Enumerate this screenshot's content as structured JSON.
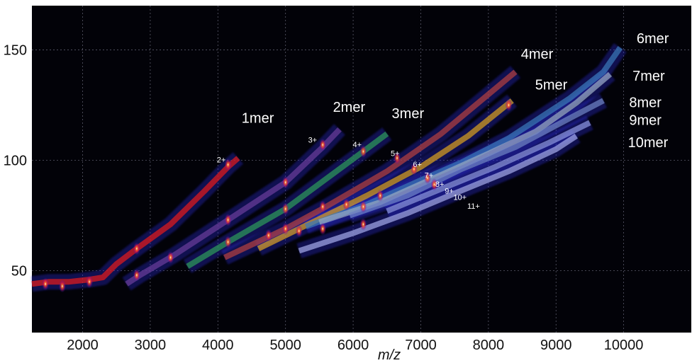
{
  "chart_data": {
    "type": "line",
    "title": "",
    "xlabel": "m/z",
    "ylabel": "",
    "xlim": [
      1250,
      11000
    ],
    "ylim": [
      22,
      170
    ],
    "x_ticks": [
      2000,
      3000,
      4000,
      5000,
      6000,
      7000,
      8000,
      9000,
      10000
    ],
    "y_ticks": [
      50,
      100,
      150
    ],
    "grid": true,
    "background": "#000000",
    "series": [
      {
        "name": "1mer",
        "color": "#e31a1c",
        "x": [
          1250,
          1500,
          1800,
          2100,
          2300,
          2500,
          2800,
          3300,
          3800,
          4150,
          4300
        ],
        "y": [
          44,
          45,
          45,
          46,
          47,
          53,
          60,
          71,
          86,
          97,
          101
        ]
      },
      {
        "name": "2mer",
        "color": "#6a3d9a",
        "x": [
          2650,
          2850,
          3350,
          4150,
          5000,
          5550,
          5800
        ],
        "y": [
          44,
          48,
          57,
          73,
          90,
          106,
          114
        ]
      },
      {
        "name": "3mer",
        "color": "#2e9a5a",
        "x": [
          3550,
          4150,
          5000,
          6150,
          6500
        ],
        "y": [
          52,
          63,
          78,
          104,
          112
        ]
      },
      {
        "name": "4mer",
        "color": "#b34040",
        "x": [
          4100,
          5000,
          5600,
          6500,
          7300,
          8400
        ],
        "y": [
          56,
          69,
          79,
          95,
          112,
          140
        ]
      },
      {
        "name": "5mer",
        "color": "#d8a020",
        "x": [
          4600,
          5200,
          6200,
          7000,
          7700,
          8350
        ],
        "y": [
          60,
          69,
          84,
          97,
          111,
          127
        ]
      },
      {
        "name": "6mer",
        "color": "#3a78b8",
        "x": [
          5300,
          6200,
          7000,
          7600,
          8300,
          9200,
          9700,
          9950
        ],
        "y": [
          70,
          80,
          91,
          99,
          110,
          128,
          140,
          151
        ]
      },
      {
        "name": "7mer",
        "color": "#9aabc0",
        "x": [
          5500,
          6400,
          7200,
          8000,
          8700,
          9300,
          9800
        ],
        "y": [
          72,
          81,
          92,
          103,
          113,
          126,
          139
        ]
      },
      {
        "name": "8mer",
        "color": "#6f84c4",
        "x": [
          5950,
          6800,
          7600,
          8400,
          9200,
          9700
        ],
        "y": [
          75,
          84,
          96,
          106,
          119,
          127
        ]
      },
      {
        "name": "9mer",
        "color": "#8c96e0",
        "x": [
          6500,
          7300,
          8100,
          8900,
          9500
        ],
        "y": [
          77,
          87,
          97,
          108,
          117
        ]
      },
      {
        "name": "10mer",
        "color": "#a2a8e8",
        "x": [
          5200,
          6000,
          6800,
          7500,
          8300,
          9000,
          9300
        ],
        "y": [
          59,
          67,
          76,
          85,
          95,
          105,
          111
        ]
      }
    ],
    "charge_labels": [
      {
        "text": "2+",
        "x": 4050,
        "y": 99
      },
      {
        "text": "3+",
        "x": 5400,
        "y": 108
      },
      {
        "text": "4+",
        "x": 6060,
        "y": 106
      },
      {
        "text": "5+",
        "x": 6620,
        "y": 102
      },
      {
        "text": "6+",
        "x": 6950,
        "y": 97
      },
      {
        "text": "7+",
        "x": 7120,
        "y": 92
      },
      {
        "text": "8+",
        "x": 7280,
        "y": 88
      },
      {
        "text": "9+",
        "x": 7420,
        "y": 85
      },
      {
        "text": "10+",
        "x": 7580,
        "y": 82
      },
      {
        "text": "11+",
        "x": 7780,
        "y": 78
      }
    ],
    "series_labels": [
      {
        "text": "1mer",
        "x": 4590,
        "y": 117
      },
      {
        "text": "2mer",
        "x": 5940,
        "y": 122
      },
      {
        "text": "3mer",
        "x": 6810,
        "y": 119
      },
      {
        "text": "4mer",
        "x": 8720,
        "y": 146
      },
      {
        "text": "5mer",
        "x": 8930,
        "y": 132
      },
      {
        "text": "6mer",
        "x": 10430,
        "y": 153
      },
      {
        "text": "7mer",
        "x": 10370,
        "y": 136
      },
      {
        "text": "8mer",
        "x": 10320,
        "y": 124
      },
      {
        "text": "9mer",
        "x": 10320,
        "y": 116
      },
      {
        "text": "10mer",
        "x": 10360,
        "y": 106
      }
    ],
    "hotspots": [
      {
        "x": 1450,
        "y": 44
      },
      {
        "x": 1700,
        "y": 43
      },
      {
        "x": 2100,
        "y": 45
      },
      {
        "x": 2800,
        "y": 60
      },
      {
        "x": 2800,
        "y": 48
      },
      {
        "x": 3300,
        "y": 56
      },
      {
        "x": 4150,
        "y": 98
      },
      {
        "x": 4150,
        "y": 73
      },
      {
        "x": 4150,
        "y": 63
      },
      {
        "x": 5000,
        "y": 78
      },
      {
        "x": 5000,
        "y": 69
      },
      {
        "x": 5000,
        "y": 90
      },
      {
        "x": 5550,
        "y": 107
      },
      {
        "x": 5550,
        "y": 79
      },
      {
        "x": 5550,
        "y": 69
      },
      {
        "x": 6150,
        "y": 104
      },
      {
        "x": 6150,
        "y": 79
      },
      {
        "x": 6150,
        "y": 71
      },
      {
        "x": 5900,
        "y": 80
      },
      {
        "x": 6650,
        "y": 101
      },
      {
        "x": 6900,
        "y": 96
      },
      {
        "x": 7100,
        "y": 92
      },
      {
        "x": 7200,
        "y": 89
      },
      {
        "x": 4750,
        "y": 66
      },
      {
        "x": 5200,
        "y": 68
      },
      {
        "x": 6400,
        "y": 84
      },
      {
        "x": 8300,
        "y": 125
      }
    ]
  }
}
